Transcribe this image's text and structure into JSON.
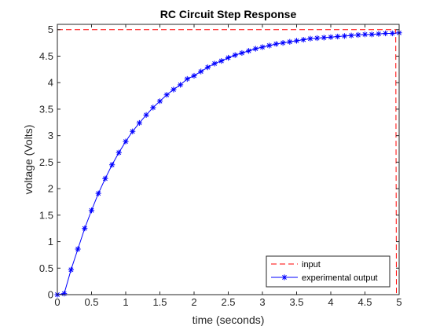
{
  "chart_data": {
    "type": "line",
    "title": "RC Circuit Step Response",
    "xlabel": "time (seconds)",
    "ylabel": "voltage (Volts)",
    "xlim": [
      0,
      5
    ],
    "ylim": [
      0,
      5.1
    ],
    "xticks": [
      0,
      0.5,
      1,
      1.5,
      2,
      2.5,
      3,
      3.5,
      4,
      4.5,
      5
    ],
    "xtick_labels": [
      "0",
      "0.5",
      "1",
      "1.5",
      "2",
      "2.5",
      "3",
      "3.5",
      "4",
      "4.5",
      "5"
    ],
    "yticks": [
      0,
      0.5,
      1,
      1.5,
      2,
      2.5,
      3,
      3.5,
      4,
      4.5,
      5
    ],
    "ytick_labels": [
      "0",
      "0.5",
      "1",
      "1.5",
      "2",
      "2.5",
      "3",
      "3.5",
      "4",
      "4.5",
      "5"
    ],
    "grid": false,
    "legend_position": "bottom-right",
    "series": [
      {
        "name": "input",
        "color": "#ff0000",
        "style": "dashed",
        "marker": "none",
        "x": [
          0,
          4.95,
          4.95,
          4.96,
          5.0
        ],
        "y": [
          5,
          5,
          5,
          0,
          0
        ]
      },
      {
        "name": "experimental output",
        "color": "#0000ff",
        "style": "solid",
        "marker": "asterisk",
        "x": [
          0,
          0.1,
          0.2,
          0.3,
          0.4,
          0.5,
          0.6,
          0.7,
          0.8,
          0.9,
          1.0,
          1.1,
          1.2,
          1.3,
          1.4,
          1.5,
          1.6,
          1.7,
          1.8,
          1.9,
          2.0,
          2.1,
          2.2,
          2.3,
          2.4,
          2.5,
          2.6,
          2.7,
          2.8,
          2.9,
          3.0,
          3.1,
          3.2,
          3.3,
          3.4,
          3.5,
          3.6,
          3.7,
          3.8,
          3.9,
          4.0,
          4.1,
          4.2,
          4.3,
          4.4,
          4.5,
          4.6,
          4.7,
          4.8,
          4.9,
          5.0
        ],
        "y": [
          0,
          0.02,
          0.47,
          0.86,
          1.25,
          1.59,
          1.91,
          2.19,
          2.45,
          2.68,
          2.89,
          3.08,
          3.24,
          3.39,
          3.53,
          3.65,
          3.77,
          3.87,
          3.96,
          4.07,
          4.13,
          4.21,
          4.29,
          4.36,
          4.41,
          4.47,
          4.52,
          4.56,
          4.6,
          4.64,
          4.67,
          4.7,
          4.73,
          4.75,
          4.77,
          4.79,
          4.81,
          4.83,
          4.84,
          4.85,
          4.86,
          4.87,
          4.88,
          4.89,
          4.9,
          4.91,
          4.91,
          4.92,
          4.93,
          4.93,
          4.94
        ]
      }
    ]
  }
}
